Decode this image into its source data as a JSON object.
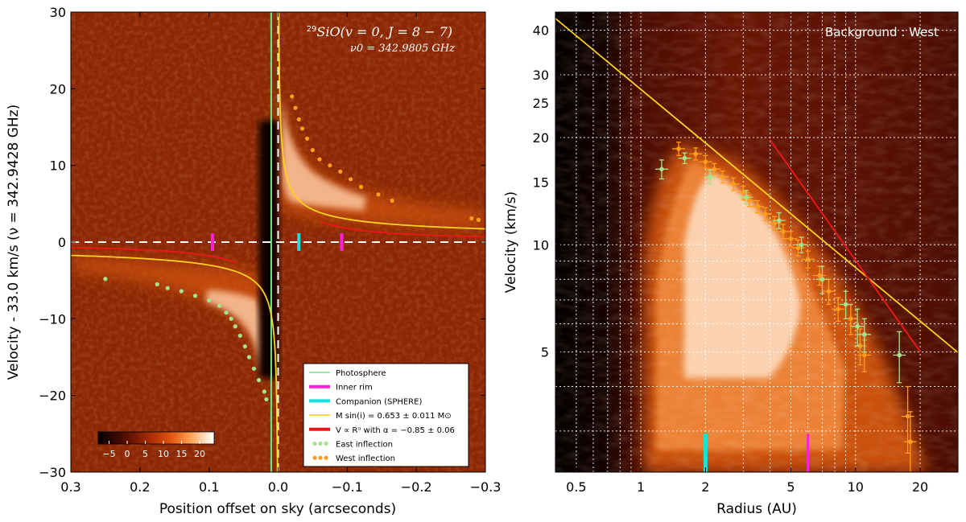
{
  "colors": {
    "photosphere": "#7fe08a",
    "inner_rim": "#ff1fd8",
    "companion": "#18e0e0",
    "mass_curve": "#ffd21c",
    "powerlaw_curve": "#e81818",
    "east_points": "#a6e48c",
    "west_points": "#ff9d1e"
  },
  "chart_data": [
    {
      "id": "left",
      "type": "heatmap",
      "title": "29SiO(v = 0, J = 8 − 7)",
      "title_iso": "29",
      "title_main": "SiO(v = 0,  J = 8 − 7)",
      "subtitle": "ν0 = 342.9805 GHz",
      "xlabel": "Position offset on sky (arcseconds)",
      "ylabel": "Velocity - 33.0 km/s (ν = 342.9428 GHz)",
      "xlim": [
        0.3,
        -0.3
      ],
      "ylim": [
        -30,
        30
      ],
      "xticks": [
        0.3,
        0.2,
        0.1,
        0.0,
        -0.1,
        -0.2,
        -0.3
      ],
      "xtick_labels": [
        "0.3",
        "0.2",
        "0.1",
        "0.0",
        "−0.1",
        "−0.2",
        "−0.3"
      ],
      "yticks": [
        -30,
        -20,
        -10,
        0,
        10,
        20,
        30
      ],
      "ytick_labels": [
        "−30",
        "−20",
        "−10",
        "0",
        "10",
        "20",
        "30"
      ],
      "colorbar": {
        "min": -8,
        "max": 24,
        "ticks": [
          -5,
          0,
          5,
          10,
          15,
          20
        ],
        "tick_labels": [
          "−5",
          "0",
          "5",
          "10",
          "15",
          "20"
        ]
      },
      "photosphere_x": 0.01,
      "inner_rim_x": [
        0.095,
        -0.092
      ],
      "companion_x": -0.03,
      "mass_curve_k": 0.25,
      "powerlaw": {
        "k": 1.4,
        "alpha": 0.85
      },
      "east_inflection": [
        [
          0.25,
          -4.8
        ],
        [
          0.175,
          -5.5
        ],
        [
          0.16,
          -6.0
        ],
        [
          0.14,
          -6.4
        ],
        [
          0.12,
          -7.0
        ],
        [
          0.1,
          -7.6
        ],
        [
          0.085,
          -8.3
        ],
        [
          0.075,
          -9.2
        ],
        [
          0.068,
          -10.0
        ],
        [
          0.062,
          -11.0
        ],
        [
          0.055,
          -12.2
        ],
        [
          0.048,
          -13.6
        ],
        [
          0.042,
          -15.0
        ],
        [
          0.035,
          -16.5
        ],
        [
          0.028,
          -18.0
        ],
        [
          0.02,
          -19.5
        ],
        [
          0.017,
          -20.5
        ]
      ],
      "west_inflection": [
        [
          -0.02,
          19.0
        ],
        [
          -0.025,
          17.5
        ],
        [
          -0.03,
          16.0
        ],
        [
          -0.035,
          14.8
        ],
        [
          -0.042,
          13.5
        ],
        [
          -0.05,
          12.0
        ],
        [
          -0.06,
          10.8
        ],
        [
          -0.075,
          10.0
        ],
        [
          -0.09,
          9.2
        ],
        [
          -0.105,
          8.2
        ],
        [
          -0.12,
          7.2
        ],
        [
          -0.145,
          6.2
        ],
        [
          -0.165,
          5.4
        ],
        [
          -0.28,
          3.1
        ],
        [
          -0.29,
          2.9
        ]
      ],
      "legend": {
        "placement": "bottom-right",
        "entries": [
          {
            "label": "Photosphere",
            "kind": "line",
            "color_key": "photosphere"
          },
          {
            "label": "Inner rim",
            "kind": "thick",
            "color_key": "inner_rim"
          },
          {
            "label": "Companion (SPHERE)",
            "kind": "thick",
            "color_key": "companion"
          },
          {
            "label": "M sin(i) = 0.653 ± 0.011 M⊙",
            "kind": "line",
            "color_key": "mass_curve"
          },
          {
            "label": "V ∝ Rᵅ with α = −0.85 ± 0.06",
            "kind": "thick",
            "color_key": "powerlaw_curve"
          },
          {
            "label": "East inflection",
            "kind": "dots",
            "color_key": "east_points"
          },
          {
            "label": "West inflection",
            "kind": "dots",
            "color_key": "west_points"
          }
        ]
      }
    },
    {
      "id": "right",
      "type": "heatmap",
      "title": "Background : West",
      "xlabel": "Radius (AU)",
      "ylabel": "Velocity (km/s)",
      "xscale": "log",
      "yscale": "log",
      "xlim": [
        0.4,
        30
      ],
      "ylim": [
        2.3,
        45
      ],
      "xticks": [
        0.5,
        1,
        2,
        5,
        10,
        20
      ],
      "xtick_labels": [
        "0.5",
        "1",
        "2",
        "5",
        "10",
        "20"
      ],
      "yticks": [
        5,
        10,
        15,
        20,
        25,
        30,
        40
      ],
      "ytick_labels": [
        "5",
        "10",
        "15",
        "20",
        "25",
        "30",
        "40"
      ],
      "x_gridlines": [
        0.5,
        0.6,
        0.7,
        0.8,
        0.9,
        1,
        2,
        3,
        4,
        5,
        6,
        7,
        8,
        9,
        10,
        20
      ],
      "y_gridlines": [
        3,
        4,
        5,
        6,
        7,
        8,
        9,
        10,
        20,
        30,
        40
      ],
      "companion_x": 2.0,
      "inner_rim_x": 6.0,
      "mass_line": {
        "k": 27.3,
        "exponent": -0.5
      },
      "powerlaw": {
        "k": 64,
        "exponent": -0.85,
        "xmin": 4.0,
        "xmax": 20
      },
      "west_points": [
        [
          1.5,
          18.6,
          0.8
        ],
        [
          1.8,
          18.0,
          0.7
        ],
        [
          2.0,
          17.1,
          0.7
        ],
        [
          2.2,
          16.3,
          0.6
        ],
        [
          2.4,
          15.5,
          0.6
        ],
        [
          2.7,
          14.8,
          0.6
        ],
        [
          3.0,
          14.0,
          0.6
        ],
        [
          3.2,
          13.3,
          0.5
        ],
        [
          3.5,
          12.8,
          0.5
        ],
        [
          3.8,
          12.2,
          0.5
        ],
        [
          4.2,
          11.5,
          0.5
        ],
        [
          4.6,
          10.9,
          0.5
        ],
        [
          5.0,
          10.4,
          0.5
        ],
        [
          5.4,
          9.8,
          0.5
        ],
        [
          6.0,
          9.1,
          0.5
        ],
        [
          6.8,
          8.2,
          0.5
        ],
        [
          7.5,
          7.4,
          0.6
        ],
        [
          8.3,
          6.6,
          0.5
        ],
        [
          9.5,
          6.2,
          0.6
        ],
        [
          10.5,
          5.2,
          0.6
        ],
        [
          11.0,
          4.9,
          0.5
        ],
        [
          17.5,
          3.3,
          0.7
        ],
        [
          18.0,
          2.8,
          0.6
        ]
      ],
      "east_points": [
        [
          1.25,
          16.3,
          1.0
        ],
        [
          1.6,
          17.5,
          0.6
        ],
        [
          2.1,
          15.5,
          0.7
        ],
        [
          3.1,
          13.6,
          0.6
        ],
        [
          4.4,
          11.7,
          0.6
        ],
        [
          5.6,
          10.0,
          0.5
        ],
        [
          7.0,
          8.0,
          0.7
        ],
        [
          9.0,
          6.8,
          0.6
        ],
        [
          10.2,
          5.9,
          0.7
        ],
        [
          11.0,
          5.6,
          0.6
        ],
        [
          16.0,
          4.9,
          0.8
        ]
      ]
    }
  ]
}
